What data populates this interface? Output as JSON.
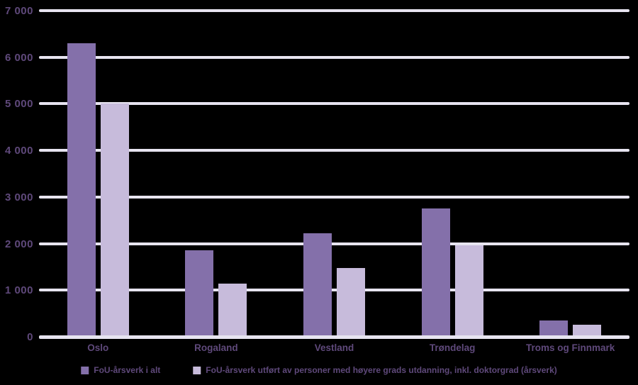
{
  "chart_data": {
    "type": "bar",
    "title": "",
    "xlabel": "",
    "ylabel": "",
    "categories": [
      "Oslo",
      "Rogaland",
      "Vestland",
      "Trøndelag",
      "Troms og Finnmark"
    ],
    "series": [
      {
        "name": "FoU-årsverk i alt",
        "color": "#8470AA",
        "values": [
          6300,
          1860,
          2220,
          2750,
          350
        ]
      },
      {
        "name": "FoU-årsverk utført av personer med høyere grads utdanning, inkl. doktorgrad (årsverk)",
        "color": "#C7BBDB",
        "values": [
          5000,
          1140,
          1480,
          1970,
          260
        ]
      }
    ],
    "ylim": [
      0,
      7000
    ],
    "ytick_interval": 1000,
    "ytick_labels": [
      "0",
      "1 000",
      "2 000",
      "3 000",
      "4 000",
      "5 000",
      "6 000",
      "7 000"
    ],
    "grid": true,
    "legend_position": "bottom"
  },
  "colors": {
    "background": "#000000",
    "gridline": "#E7E4F0",
    "axis_text": "#5F497B"
  }
}
